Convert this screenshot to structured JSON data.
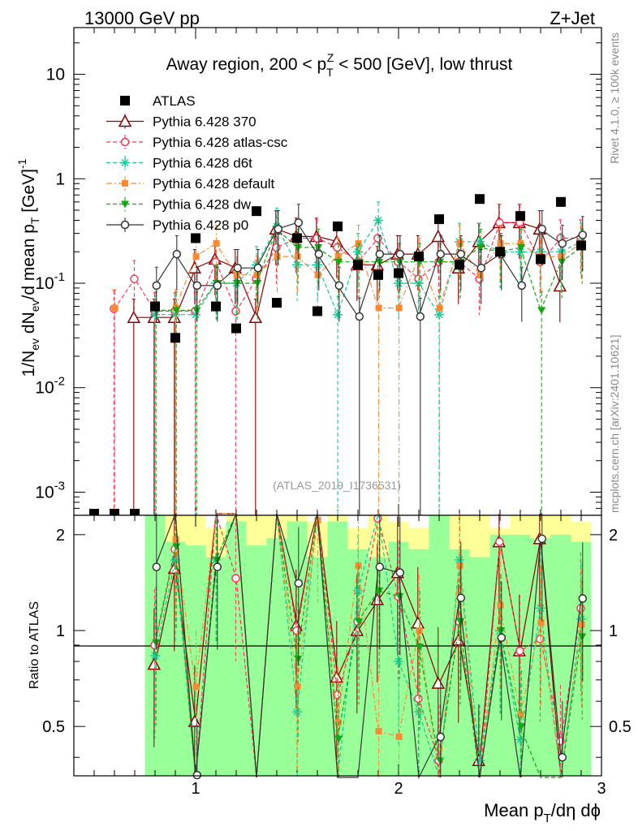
{
  "header": {
    "left": "13000 GeV pp",
    "right": "Z+Jet"
  },
  "side_text": {
    "rivet": "Rivet 4.1.0, ≥ 100k events",
    "mcplots": "mcplots.cern.ch [arXiv:2401.10621]"
  },
  "colors": {
    "atlas": "#000000",
    "p370": "#8b0000",
    "atlascsc": "#ff3355",
    "d6t": "#11cc99",
    "default": "#ff8833",
    "dw": "#11aa11",
    "p0": "#333333",
    "band_green": "#99ff99",
    "band_yellow": "#ffff99"
  },
  "chart_data": {
    "type": "scatter",
    "title": "Away region, 200 < p_T^Z < 500 [GeV], low thrust",
    "title_parts": {
      "pre": "Away region, 200 < p",
      "sub": "T",
      "sup": "Z",
      "post": " < 500 [GeV], low thrust"
    },
    "analysis_label": "(ATLAS_2019_I1736531)",
    "ylabel": "1/N_ev dN_ev/d mean p_T [GeV]^-1",
    "xlabel": "Mean p_T/dη dϕ",
    "ratio_ylabel": "Ratio to ATLAS",
    "xlim": [
      0.4,
      3.0
    ],
    "ylim_main": [
      0.0006,
      28
    ],
    "ylim_ratio": [
      0.35,
      2.3
    ],
    "x_ticks": [
      "1",
      "2",
      "3"
    ],
    "y_ticks_main": [
      "10",
      "1",
      "10^-1",
      "10^-2",
      "10^-3"
    ],
    "y_ticks_ratio": [
      "2",
      "1",
      "0.5"
    ],
    "x": [
      0.5,
      0.6,
      0.7,
      0.8,
      0.9,
      1.0,
      1.1,
      1.2,
      1.3,
      1.4,
      1.5,
      1.6,
      1.7,
      1.8,
      1.9,
      2.0,
      2.1,
      2.2,
      2.3,
      2.4,
      2.5,
      2.6,
      2.7,
      2.8,
      2.9
    ],
    "atlas": [
      0.0006,
      0.0006,
      0.0006,
      0.06,
      0.03,
      0.27,
      0.06,
      0.037,
      0.49,
      0.065,
      0.27,
      0.054,
      0.35,
      0.15,
      0.12,
      0.125,
      0.18,
      0.41,
      0.15,
      0.64,
      0.2,
      0.44,
      0.17,
      0.6,
      0.23
    ],
    "band_ratio": {
      "x_start": 0.75,
      "x_end": 2.95,
      "yellow_upper": [
        2.3,
        2.3,
        2.3,
        2.1,
        2.3,
        2.3,
        2.3,
        2.3,
        2.2,
        2.3,
        2.1,
        2.3,
        2.2,
        2.1,
        2.3,
        2.3,
        2.3,
        2.1,
        2.3,
        2.3,
        2.3,
        2.2
      ],
      "green_upper": [
        2.3,
        1.9,
        1.85,
        1.7,
        2.2,
        1.85,
        1.95,
        2.2,
        1.7,
        2.2,
        1.8,
        1.7,
        1.9,
        1.8,
        2.3,
        1.8,
        1.7,
        2.0,
        2.0,
        1.95,
        2.0,
        1.9
      ]
    },
    "series": [
      {
        "name": "ATLAS",
        "key": "atlas",
        "marker": "square-filled",
        "line": "none"
      },
      {
        "name": "Pythia 6.428 370",
        "key": "p370",
        "marker": "triangle-open",
        "line": "solid",
        "values": [
          null,
          null,
          0.047,
          0.047,
          0.047,
          0.14,
          0.17,
          0.14,
          0.047,
          0.33,
          0.28,
          0.28,
          0.25,
          0.15,
          0.15,
          0.19,
          0.19,
          0.28,
          0.14,
          0.25,
          0.38,
          0.38,
          0.33,
          0.094,
          null
        ]
      },
      {
        "name": "Pythia 6.428 atlas-csc",
        "key": "atlascsc",
        "marker": "circle-open",
        "line": "dashed",
        "values": [
          null,
          0.057,
          0.11,
          0.054,
          0.054,
          0.054,
          0.16,
          0.054,
          0.11,
          0.22,
          0.27,
          0.27,
          0.22,
          0.16,
          0.27,
          0.16,
          0.11,
          0.16,
          0.16,
          0.11,
          0.38,
          0.38,
          0.16,
          0.27,
          0.27
        ]
      },
      {
        "name": "Pythia 6.428 d6t",
        "key": "d6t",
        "marker": "asterisk",
        "line": "dashed",
        "values": [
          null,
          null,
          null,
          0.05,
          0.05,
          0.05,
          0.1,
          0.1,
          0.15,
          0.35,
          0.15,
          0.15,
          0.05,
          0.2,
          0.4,
          0.1,
          0.1,
          0.05,
          0.25,
          0.25,
          0.2,
          0.2,
          0.2,
          0.2,
          0.25
        ]
      },
      {
        "name": "Pythia 6.428 default",
        "key": "default",
        "marker": "square-filled-small",
        "line": "dashdot",
        "values": [
          null,
          0.058,
          null,
          null,
          0.058,
          0.18,
          0.24,
          0.12,
          0.12,
          0.18,
          0.18,
          0.12,
          0.18,
          0.24,
          0.058,
          0.058,
          0.18,
          0.058,
          0.24,
          0.12,
          0.24,
          0.24,
          0.18,
          0.18,
          0.24
        ]
      },
      {
        "name": "Pythia 6.428 dw",
        "key": "dw",
        "marker": "triangle-down-filled",
        "line": "dashed",
        "values": [
          null,
          null,
          null,
          0.055,
          0.055,
          0.055,
          0.1,
          0.1,
          0.1,
          0.33,
          0.22,
          0.22,
          0.16,
          0.16,
          0.16,
          0.16,
          0.16,
          0.16,
          0.16,
          0.22,
          0.2,
          0.22,
          0.055,
          0.16,
          0.22
        ]
      },
      {
        "name": "Pythia 6.428 p0",
        "key": "p0",
        "marker": "circle-open",
        "line": "solid",
        "values": [
          null,
          null,
          null,
          0.095,
          0.19,
          0.095,
          0.095,
          0.14,
          0.14,
          0.33,
          0.38,
          0.19,
          0.095,
          0.048,
          0.19,
          0.19,
          0.048,
          0.19,
          0.19,
          0.14,
          0.19,
          0.095,
          0.33,
          0.24,
          0.29
        ]
      }
    ]
  }
}
